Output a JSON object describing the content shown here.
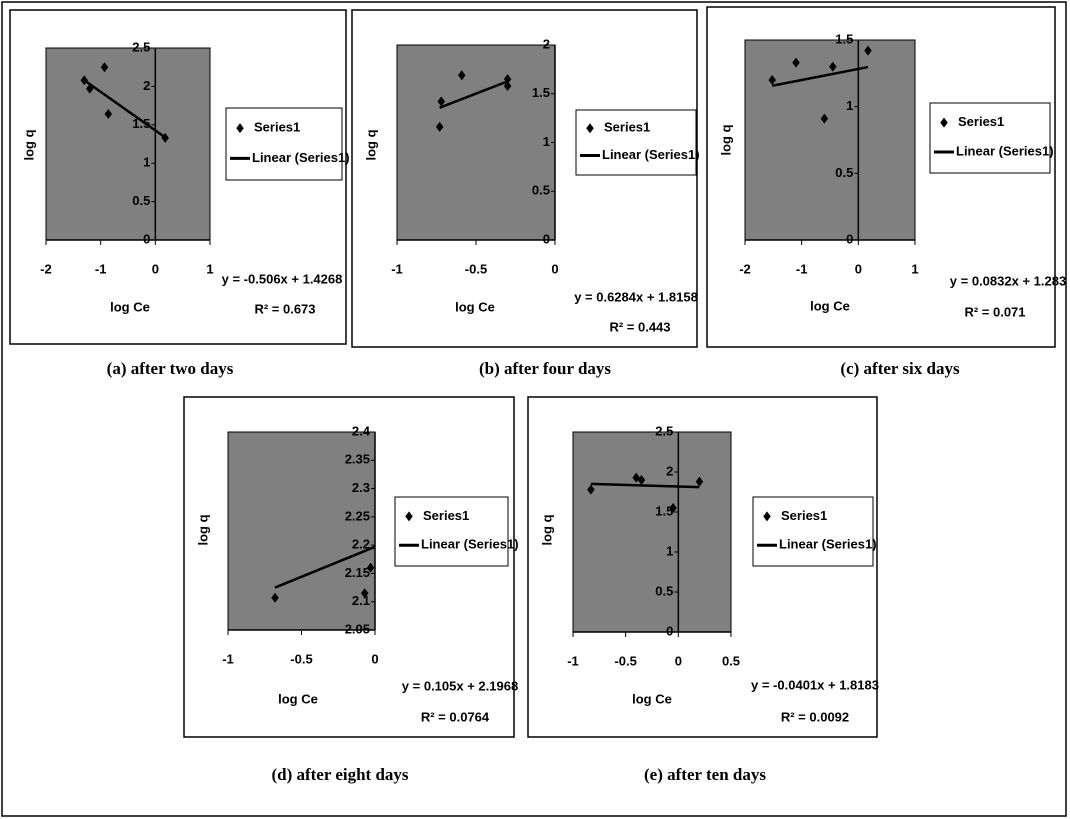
{
  "chart_data": [
    {
      "type": "scatter",
      "caption": "(a) after two days",
      "xlabel": "log Ce",
      "ylabel": "log q",
      "xlim": [
        -2,
        1
      ],
      "ylim": [
        0,
        2.5
      ],
      "xticks": [
        -2,
        -1,
        0,
        1
      ],
      "yticks": [
        0,
        0.5,
        1,
        1.5,
        2,
        2.5
      ],
      "series": [
        {
          "name": "Series1",
          "color": "#000000",
          "x": [
            -1.3,
            -1.2,
            -0.93,
            -0.86,
            0.18
          ],
          "values": [
            2.08,
            1.97,
            2.25,
            1.64,
            1.33
          ]
        },
        {
          "name": "Linear (Series1)",
          "color": "#000000",
          "x": [
            -1.3,
            0.18
          ],
          "values": [
            2.08,
            1.336
          ]
        }
      ],
      "annotations": [
        "y = -0.506x + 1.4268",
        "R² = 0.673"
      ]
    },
    {
      "type": "scatter",
      "caption": "(b) after four days",
      "xlabel": "log Ce",
      "ylabel": "log q",
      "xlim": [
        -1,
        0
      ],
      "ylim": [
        0,
        2
      ],
      "xticks": [
        -1,
        -0.5,
        0
      ],
      "yticks": [
        0,
        0.5,
        1,
        1.5,
        2
      ],
      "series": [
        {
          "name": "Series1",
          "color": "#000000",
          "x": [
            -0.73,
            -0.72,
            -0.59,
            -0.3,
            -0.3
          ],
          "values": [
            1.16,
            1.42,
            1.69,
            1.58,
            1.65
          ]
        },
        {
          "name": "Linear (Series1)",
          "color": "#000000",
          "x": [
            -0.73,
            -0.3
          ],
          "values": [
            1.357,
            1.627
          ]
        }
      ],
      "annotations": [
        "y = 0.6284x + 1.8158",
        "R² = 0.443"
      ]
    },
    {
      "type": "scatter",
      "caption": "(c) after six days",
      "xlabel": "log Ce",
      "ylabel": "log q",
      "xlim": [
        -2,
        1
      ],
      "ylim": [
        0,
        1.5
      ],
      "xticks": [
        -2,
        -1,
        0,
        1
      ],
      "yticks": [
        0,
        0.5,
        1,
        1.5
      ],
      "series": [
        {
          "name": "Series1",
          "color": "#000000",
          "x": [
            -1.52,
            -1.1,
            -0.6,
            -0.45,
            0.17
          ],
          "values": [
            1.2,
            1.33,
            0.91,
            1.3,
            1.42
          ]
        },
        {
          "name": "Linear (Series1)",
          "color": "#000000",
          "x": [
            -1.52,
            0.17
          ],
          "values": [
            1.157,
            1.297
          ]
        }
      ],
      "annotations": [
        "y = 0.0832x + 1.283",
        "R² = 0.071"
      ]
    },
    {
      "type": "scatter",
      "caption": "(d) after eight days",
      "xlabel": "log Ce",
      "ylabel": "log q",
      "xlim": [
        -1,
        0
      ],
      "ylim": [
        2.05,
        2.4
      ],
      "xticks": [
        -1,
        -0.5,
        0
      ],
      "yticks": [
        2.05,
        2.1,
        2.15,
        2.2,
        2.25,
        2.3,
        2.35,
        2.4
      ],
      "series": [
        {
          "name": "Series1",
          "color": "#000000",
          "x": [
            -0.68,
            -0.07,
            -0.03
          ],
          "values": [
            2.107,
            2.115,
            2.16
          ]
        },
        {
          "name": "Linear (Series1)",
          "color": "#000000",
          "x": [
            -0.68,
            0
          ],
          "values": [
            2.125,
            2.197
          ]
        }
      ],
      "annotations": [
        "y = 0.105x + 2.1968",
        "R² = 0.0764"
      ]
    },
    {
      "type": "scatter",
      "caption": "(e) after ten days",
      "xlabel": "log Ce",
      "ylabel": "log q",
      "xlim": [
        -1,
        0.5
      ],
      "ylim": [
        0,
        2.5
      ],
      "xticks": [
        -1,
        -0.5,
        0,
        0.5
      ],
      "yticks": [
        0,
        0.5,
        1,
        1.5,
        2,
        2.5
      ],
      "series": [
        {
          "name": "Series1",
          "color": "#000000",
          "x": [
            -0.83,
            -0.4,
            -0.35,
            -0.05,
            0.2
          ],
          "values": [
            1.78,
            1.93,
            1.9,
            1.55,
            1.88
          ]
        },
        {
          "name": "Linear (Series1)",
          "color": "#000000",
          "x": [
            -0.83,
            0.2
          ],
          "values": [
            1.8516,
            1.8103
          ]
        }
      ],
      "annotations": [
        "y = -0.0401x + 1.8183",
        "R² = 0.0092"
      ]
    }
  ]
}
